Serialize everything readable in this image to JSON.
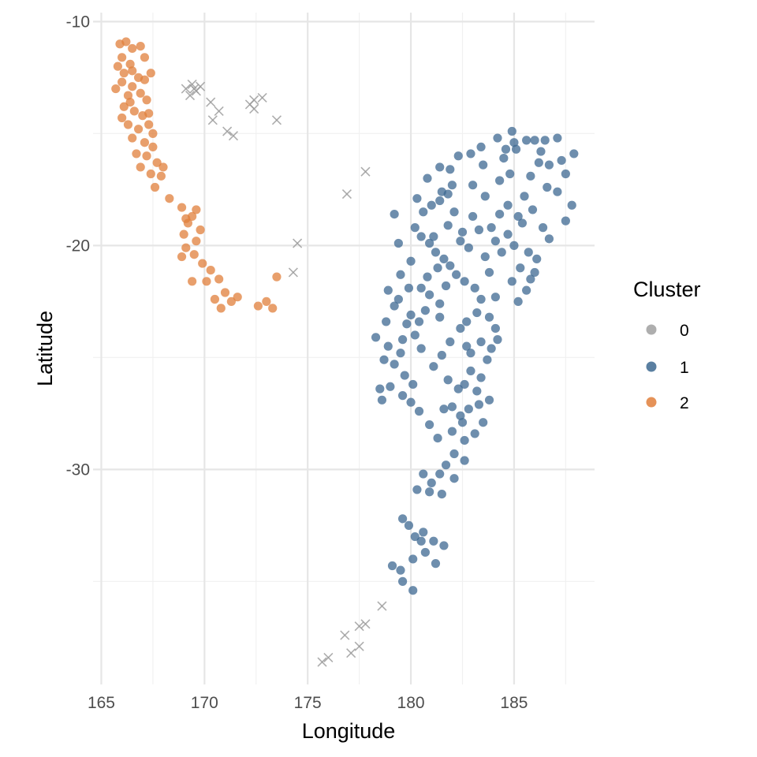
{
  "chart_data": {
    "type": "scatter",
    "xlabel": "Longitude",
    "ylabel": "Latitude",
    "xlim": [
      164.6,
      188.9
    ],
    "ylim": [
      -39.6,
      -9.6
    ],
    "x_ticks": [
      165,
      170,
      175,
      180,
      185
    ],
    "y_ticks": [
      -10,
      -20,
      -30
    ],
    "x_tick_labels": [
      "165",
      "170",
      "175",
      "180",
      "185"
    ],
    "y_tick_labels": [
      "-10",
      "-20",
      "-30"
    ],
    "grid": true,
    "legend": {
      "title": "Cluster",
      "position": "right",
      "entries": [
        {
          "label": "0",
          "color": "#a0a0a0"
        },
        {
          "label": "1",
          "color": "#3d6891"
        },
        {
          "label": "2",
          "color": "#e07f3b"
        }
      ]
    },
    "series": [
      {
        "name": "0",
        "color": "#999999",
        "marker": "x",
        "points": [
          [
            169.1,
            -13.0
          ],
          [
            169.4,
            -12.8
          ],
          [
            169.6,
            -13.1
          ],
          [
            169.3,
            -13.3
          ],
          [
            169.8,
            -12.9
          ],
          [
            169.5,
            -13.0
          ],
          [
            170.3,
            -13.6
          ],
          [
            170.7,
            -14.0
          ],
          [
            170.4,
            -14.4
          ],
          [
            171.1,
            -14.9
          ],
          [
            171.4,
            -15.1
          ],
          [
            172.2,
            -13.7
          ],
          [
            172.4,
            -13.9
          ],
          [
            172.4,
            -13.5
          ],
          [
            172.8,
            -13.4
          ],
          [
            173.5,
            -14.4
          ],
          [
            177.8,
            -16.7
          ],
          [
            176.9,
            -17.7
          ],
          [
            174.5,
            -19.9
          ],
          [
            174.3,
            -21.2
          ],
          [
            178.6,
            -36.1
          ],
          [
            177.8,
            -36.9
          ],
          [
            177.5,
            -37.0
          ],
          [
            176.8,
            -37.4
          ],
          [
            177.5,
            -37.9
          ],
          [
            177.1,
            -38.2
          ],
          [
            176.0,
            -38.4
          ],
          [
            175.7,
            -38.6
          ]
        ]
      },
      {
        "name": "1",
        "color": "#3d6891",
        "marker": "circle",
        "points": [
          [
            184.2,
            -15.2
          ],
          [
            184.9,
            -14.9
          ],
          [
            185.0,
            -15.4
          ],
          [
            185.6,
            -15.3
          ],
          [
            186.0,
            -15.3
          ],
          [
            186.5,
            -15.3
          ],
          [
            187.1,
            -15.2
          ],
          [
            187.9,
            -15.9
          ],
          [
            185.1,
            -15.7
          ],
          [
            186.2,
            -16.3
          ],
          [
            186.7,
            -16.4
          ],
          [
            187.3,
            -16.2
          ],
          [
            185.8,
            -16.9
          ],
          [
            186.6,
            -17.4
          ],
          [
            187.1,
            -17.6
          ],
          [
            187.8,
            -18.2
          ],
          [
            187.5,
            -18.9
          ],
          [
            184.5,
            -16.1
          ],
          [
            184.8,
            -16.8
          ],
          [
            185.5,
            -17.8
          ],
          [
            185.9,
            -18.4
          ],
          [
            185.4,
            -19.0
          ],
          [
            186.4,
            -19.2
          ],
          [
            186.7,
            -19.7
          ],
          [
            185.0,
            -20.0
          ],
          [
            185.7,
            -20.3
          ],
          [
            186.1,
            -20.6
          ],
          [
            185.3,
            -21.0
          ],
          [
            185.8,
            -21.5
          ],
          [
            184.9,
            -21.6
          ],
          [
            185.2,
            -22.5
          ],
          [
            184.1,
            -22.3
          ],
          [
            183.8,
            -21.2
          ],
          [
            182.9,
            -15.9
          ],
          [
            183.5,
            -16.4
          ],
          [
            182.3,
            -16.0
          ],
          [
            181.9,
            -16.6
          ],
          [
            183.0,
            -17.3
          ],
          [
            183.6,
            -17.8
          ],
          [
            184.3,
            -17.1
          ],
          [
            184.3,
            -18.6
          ],
          [
            183.9,
            -19.2
          ],
          [
            184.1,
            -19.8
          ],
          [
            184.4,
            -20.3
          ],
          [
            183.6,
            -20.5
          ],
          [
            182.8,
            -20.1
          ],
          [
            182.5,
            -19.4
          ],
          [
            182.1,
            -18.5
          ],
          [
            181.8,
            -17.7
          ],
          [
            181.4,
            -18.0
          ],
          [
            181.0,
            -18.2
          ],
          [
            180.6,
            -18.5
          ],
          [
            180.2,
            -19.2
          ],
          [
            179.4,
            -19.9
          ],
          [
            180.5,
            -19.6
          ],
          [
            180.9,
            -19.9
          ],
          [
            181.2,
            -20.3
          ],
          [
            181.6,
            -20.6
          ],
          [
            181.9,
            -20.9
          ],
          [
            181.3,
            -21.0
          ],
          [
            180.8,
            -21.4
          ],
          [
            180.5,
            -21.9
          ],
          [
            180.9,
            -22.2
          ],
          [
            181.4,
            -22.6
          ],
          [
            181.7,
            -21.8
          ],
          [
            182.2,
            -21.3
          ],
          [
            182.6,
            -21.6
          ],
          [
            183.1,
            -21.9
          ],
          [
            183.4,
            -22.4
          ],
          [
            183.2,
            -23.0
          ],
          [
            182.7,
            -23.4
          ],
          [
            183.8,
            -23.2
          ],
          [
            184.1,
            -23.7
          ],
          [
            184.2,
            -24.2
          ],
          [
            183.9,
            -24.6
          ],
          [
            183.4,
            -24.3
          ],
          [
            182.9,
            -24.8
          ],
          [
            182.4,
            -23.7
          ],
          [
            181.9,
            -24.3
          ],
          [
            181.5,
            -24.9
          ],
          [
            181.1,
            -25.4
          ],
          [
            180.5,
            -24.6
          ],
          [
            180.2,
            -24.0
          ],
          [
            179.8,
            -23.5
          ],
          [
            180.0,
            -23.1
          ],
          [
            180.4,
            -23.4
          ],
          [
            179.6,
            -24.2
          ],
          [
            179.5,
            -24.8
          ],
          [
            179.2,
            -25.3
          ],
          [
            179.7,
            -25.8
          ],
          [
            180.1,
            -26.2
          ],
          [
            179.6,
            -26.7
          ],
          [
            178.9,
            -24.5
          ],
          [
            178.7,
            -25.1
          ],
          [
            178.5,
            -26.4
          ],
          [
            178.6,
            -26.9
          ],
          [
            178.9,
            -22.0
          ],
          [
            179.2,
            -22.7
          ],
          [
            178.8,
            -23.4
          ],
          [
            178.3,
            -24.1
          ],
          [
            179.5,
            -21.3
          ],
          [
            179.9,
            -21.9
          ],
          [
            180.7,
            -22.9
          ],
          [
            181.4,
            -23.2
          ],
          [
            181.8,
            -26.0
          ],
          [
            182.3,
            -26.4
          ],
          [
            182.6,
            -26.2
          ],
          [
            183.2,
            -26.5
          ],
          [
            182.0,
            -27.2
          ],
          [
            182.4,
            -27.6
          ],
          [
            182.8,
            -27.3
          ],
          [
            182.5,
            -27.9
          ],
          [
            182.0,
            -28.3
          ],
          [
            182.6,
            -28.7
          ],
          [
            183.1,
            -28.4
          ],
          [
            183.5,
            -27.9
          ],
          [
            183.3,
            -27.1
          ],
          [
            183.8,
            -26.9
          ],
          [
            182.1,
            -29.3
          ],
          [
            181.7,
            -29.8
          ],
          [
            181.4,
            -30.2
          ],
          [
            181.0,
            -30.6
          ],
          [
            180.6,
            -30.2
          ],
          [
            180.3,
            -30.9
          ],
          [
            180.9,
            -31.0
          ],
          [
            181.5,
            -31.1
          ],
          [
            182.1,
            -30.4
          ],
          [
            182.6,
            -29.6
          ],
          [
            179.6,
            -32.2
          ],
          [
            179.9,
            -32.5
          ],
          [
            180.2,
            -33.0
          ],
          [
            180.6,
            -32.8
          ],
          [
            181.1,
            -33.2
          ],
          [
            181.6,
            -33.4
          ],
          [
            180.7,
            -33.7
          ],
          [
            180.1,
            -34.0
          ],
          [
            179.5,
            -34.5
          ],
          [
            179.1,
            -34.3
          ],
          [
            179.6,
            -35.0
          ],
          [
            180.1,
            -35.4
          ],
          [
            180.5,
            -33.2
          ],
          [
            181.2,
            -34.2
          ],
          [
            180.0,
            -27.0
          ],
          [
            180.4,
            -27.4
          ],
          [
            181.6,
            -27.3
          ],
          [
            182.9,
            -25.6
          ],
          [
            183.4,
            -25.9
          ],
          [
            179.4,
            -22.4
          ],
          [
            180.0,
            -20.7
          ],
          [
            181.1,
            -19.6
          ],
          [
            181.8,
            -19.1
          ],
          [
            182.4,
            -19.8
          ],
          [
            183.0,
            -18.7
          ],
          [
            183.3,
            -19.3
          ],
          [
            184.7,
            -18.2
          ],
          [
            185.2,
            -18.7
          ],
          [
            184.7,
            -19.5
          ],
          [
            185.6,
            -22.0
          ],
          [
            186.0,
            -21.2
          ],
          [
            181.5,
            -17.6
          ],
          [
            182.0,
            -17.3
          ],
          [
            180.8,
            -17.0
          ],
          [
            181.4,
            -16.5
          ],
          [
            183.4,
            -15.6
          ],
          [
            184.6,
            -15.7
          ],
          [
            180.3,
            -17.9
          ],
          [
            179.2,
            -18.6
          ],
          [
            186.3,
            -15.8
          ],
          [
            187.5,
            -16.8
          ],
          [
            182.7,
            -24.5
          ],
          [
            183.7,
            -25.1
          ],
          [
            179.0,
            -26.3
          ],
          [
            180.9,
            -28.0
          ],
          [
            181.3,
            -28.6
          ]
        ]
      },
      {
        "name": "2",
        "color": "#e07f3b",
        "marker": "circle",
        "points": [
          [
            165.9,
            -11.0
          ],
          [
            166.2,
            -10.9
          ],
          [
            166.5,
            -11.2
          ],
          [
            166.0,
            -11.6
          ],
          [
            166.4,
            -11.9
          ],
          [
            165.8,
            -12.0
          ],
          [
            166.1,
            -12.3
          ],
          [
            166.5,
            -12.2
          ],
          [
            166.8,
            -12.5
          ],
          [
            167.1,
            -12.6
          ],
          [
            167.4,
            -12.3
          ],
          [
            166.0,
            -12.7
          ],
          [
            166.5,
            -12.9
          ],
          [
            165.7,
            -13.0
          ],
          [
            166.3,
            -13.3
          ],
          [
            166.9,
            -13.2
          ],
          [
            167.2,
            -13.5
          ],
          [
            166.1,
            -13.8
          ],
          [
            166.6,
            -14.0
          ],
          [
            167.0,
            -14.2
          ],
          [
            166.3,
            -14.6
          ],
          [
            166.8,
            -14.8
          ],
          [
            167.3,
            -14.6
          ],
          [
            166.5,
            -15.2
          ],
          [
            167.1,
            -15.4
          ],
          [
            167.5,
            -15.6
          ],
          [
            166.7,
            -15.9
          ],
          [
            167.2,
            -16.0
          ],
          [
            167.7,
            -16.3
          ],
          [
            166.9,
            -16.5
          ],
          [
            167.4,
            -16.8
          ],
          [
            168.0,
            -16.5
          ],
          [
            167.6,
            -17.4
          ],
          [
            168.3,
            -17.9
          ],
          [
            168.9,
            -18.3
          ],
          [
            169.4,
            -18.7
          ],
          [
            169.2,
            -19.0
          ],
          [
            169.8,
            -19.3
          ],
          [
            169.6,
            -19.8
          ],
          [
            169.1,
            -20.1
          ],
          [
            169.5,
            -20.4
          ],
          [
            169.9,
            -20.8
          ],
          [
            170.3,
            -21.1
          ],
          [
            170.7,
            -21.5
          ],
          [
            170.5,
            -22.4
          ],
          [
            170.8,
            -22.8
          ],
          [
            171.3,
            -22.5
          ],
          [
            171.6,
            -22.3
          ],
          [
            172.6,
            -22.7
          ],
          [
            173.0,
            -22.5
          ],
          [
            173.3,
            -22.8
          ],
          [
            173.5,
            -21.4
          ],
          [
            169.0,
            -19.5
          ],
          [
            168.9,
            -20.5
          ],
          [
            169.4,
            -21.6
          ],
          [
            166.9,
            -11.1
          ],
          [
            167.1,
            -11.6
          ],
          [
            166.4,
            -13.6
          ],
          [
            167.3,
            -14.1
          ],
          [
            167.5,
            -15.0
          ],
          [
            169.6,
            -18.4
          ],
          [
            169.1,
            -18.8
          ],
          [
            170.1,
            -21.6
          ],
          [
            171.0,
            -22.1
          ],
          [
            167.9,
            -16.9
          ],
          [
            166.0,
            -14.3
          ]
        ]
      }
    ]
  }
}
